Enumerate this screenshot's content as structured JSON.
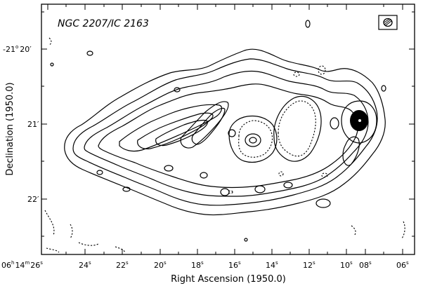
{
  "plot": {
    "title": "NGC 2207/IC 2163",
    "xlabel": "Right Ascension (1950.0)",
    "ylabel": "Declination (1950.0)",
    "x_ticks": [
      {
        "h": "06",
        "m": "14",
        "s": "26"
      },
      {
        "s": "24"
      },
      {
        "s": "22"
      },
      {
        "s": "20"
      },
      {
        "s": "18"
      },
      {
        "s": "16"
      },
      {
        "s": "14"
      },
      {
        "s": "12"
      },
      {
        "s": "10"
      },
      {
        "s": "08"
      },
      {
        "s": "06"
      }
    ],
    "y_ticks": [
      {
        "deg": "-21",
        "min": "20"
      },
      {
        "min": "21"
      },
      {
        "min": "22"
      }
    ],
    "h_sup": "h",
    "m_sup": "m",
    "s_sup": "s",
    "deg_sup": "o",
    "arcmin_mark": "′",
    "colors": {
      "ink": "#000000",
      "background": "#ffffff"
    }
  }
}
